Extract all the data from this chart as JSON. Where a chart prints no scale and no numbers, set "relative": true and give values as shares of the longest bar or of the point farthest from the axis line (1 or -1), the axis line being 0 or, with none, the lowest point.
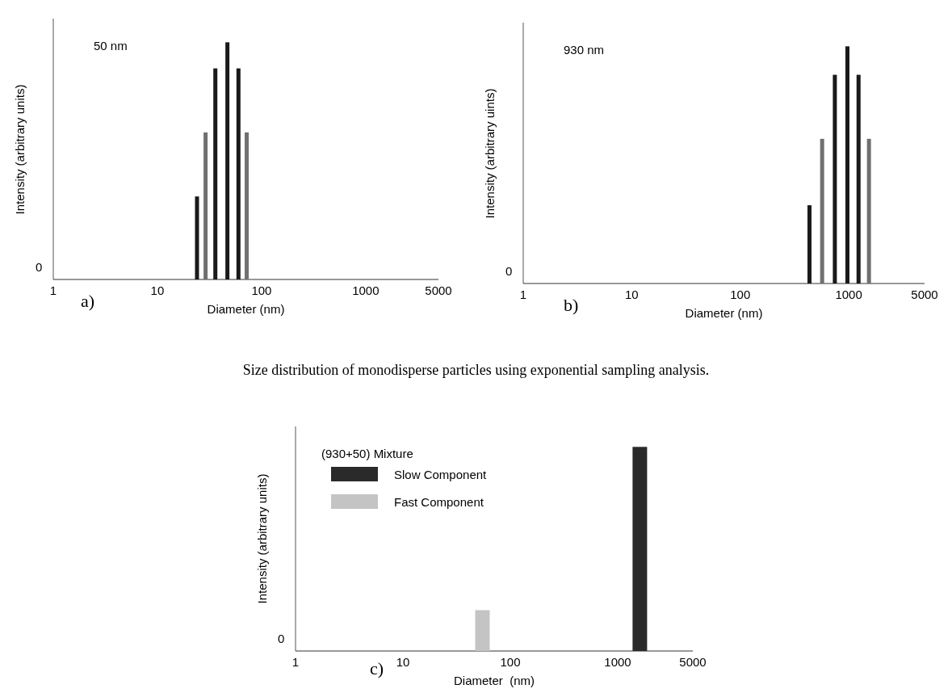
{
  "chart_data": [
    {
      "type": "bar",
      "title": "50 nm",
      "xlabel": "Diameter (nm)",
      "ylabel": "Intensity (arbitrary units)",
      "relative": true,
      "log": "x",
      "xlim": [
        1,
        5000
      ],
      "xticks": [
        1,
        10,
        100,
        1000,
        5000
      ],
      "annotations": [
        "a)",
        "0",
        "Size distribution of monodisperse particles using exponential sampling analysis."
      ],
      "series": [
        {
          "x": [
            24,
            29,
            36,
            47,
            60,
            72
          ],
          "values": [
            0.35,
            0.62,
            0.89,
            1,
            0.89,
            0.62
          ],
          "colors": [
            "#1a1a1a",
            "#707070",
            "#1a1a1a",
            "#1a1a1a",
            "#1a1a1a",
            "#707070"
          ]
        }
      ]
    },
    {
      "type": "bar",
      "title": "930 nm",
      "xlabel": "Diameter (nm)",
      "ylabel": "Intensity (arbitrary uints)",
      "relative": true,
      "log": "x",
      "xlim": [
        1,
        5000
      ],
      "xticks": [
        1,
        10,
        100,
        1000,
        5000
      ],
      "annotations": [
        "b)",
        "0"
      ],
      "series": [
        {
          "x": [
            435,
            569,
            745,
            973,
            1232,
            1537
          ],
          "values": [
            0.33,
            0.61,
            0.88,
            1,
            0.88,
            0.61
          ],
          "colors": [
            "#1a1a1a",
            "#707070",
            "#1a1a1a",
            "#1a1a1a",
            "#1a1a1a",
            "#707070"
          ]
        }
      ]
    },
    {
      "type": "bar",
      "xlabel": "Diameter  (nm)",
      "ylabel": "Intensity (arbitrary units)",
      "legend_title": "(930+50) Mixture",
      "legend": "top left",
      "relative": true,
      "log": "x",
      "xlim": [
        1,
        5000
      ],
      "xticks": [
        1,
        10,
        100,
        1000,
        5000
      ],
      "annotations": [
        "c)",
        "0"
      ],
      "series": [
        {
          "name": "Slow Component",
          "color": "#2a2a2a",
          "x": [
            1606
          ],
          "values": [
            1
          ]
        },
        {
          "name": "Fast Component",
          "color": "#c4c4c4",
          "x": [
            55
          ],
          "values": [
            0.2
          ]
        }
      ]
    }
  ]
}
